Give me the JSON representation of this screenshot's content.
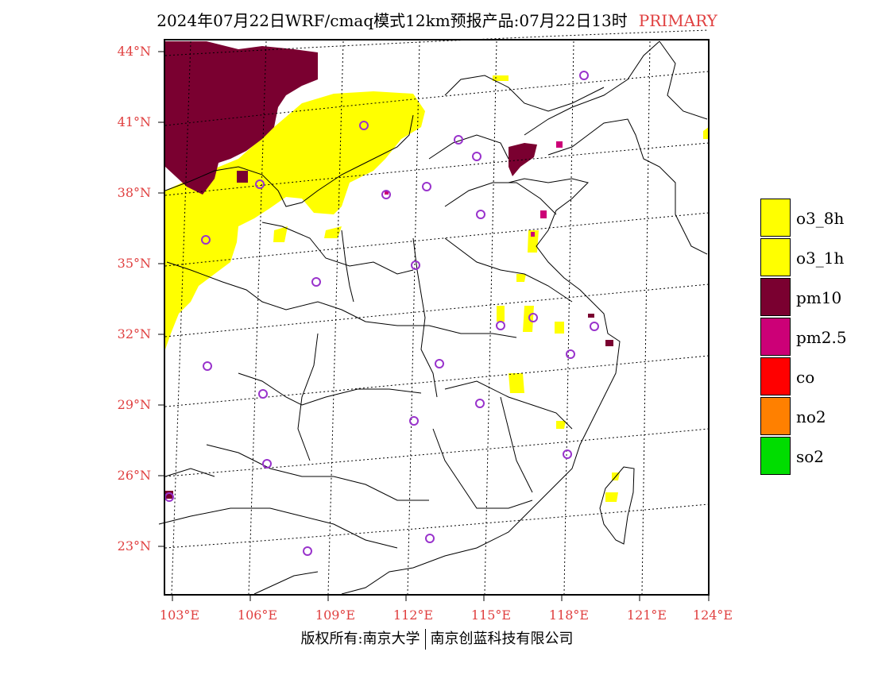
{
  "title": {
    "main": "2024年07月22日WRF/cmaq模式12km预报产品:07月22日13时",
    "tag": "PRIMARY"
  },
  "axes": {
    "y_labels": [
      "44°N",
      "41°N",
      "38°N",
      "35°N",
      "32°N",
      "29°N",
      "26°N",
      "23°N"
    ],
    "x_labels": [
      "103°E",
      "106°E",
      "109°E",
      "112°E",
      "115°E",
      "118°E",
      "121°E",
      "124°E"
    ],
    "label_color": "#e04040"
  },
  "legend": [
    {
      "label": "o3_8h",
      "color": "#ffff00"
    },
    {
      "label": "o3_1h",
      "color": "#ffff00"
    },
    {
      "label": "pm10",
      "color": "#7a0030"
    },
    {
      "label": "pm2.5",
      "color": "#cc0077"
    },
    {
      "label": "co",
      "color": "#ff0000"
    },
    {
      "label": "no2",
      "color": "#ff8000"
    },
    {
      "label": "so2",
      "color": "#00dd00"
    }
  ],
  "footer": {
    "left": "版权所有:南京大学",
    "right": "南京创蓝科技有限公司"
  },
  "colors": {
    "station_marker": "#9933cc",
    "pm10": "#7a0030",
    "o3": "#ffff00",
    "pm25": "#cc0077"
  }
}
